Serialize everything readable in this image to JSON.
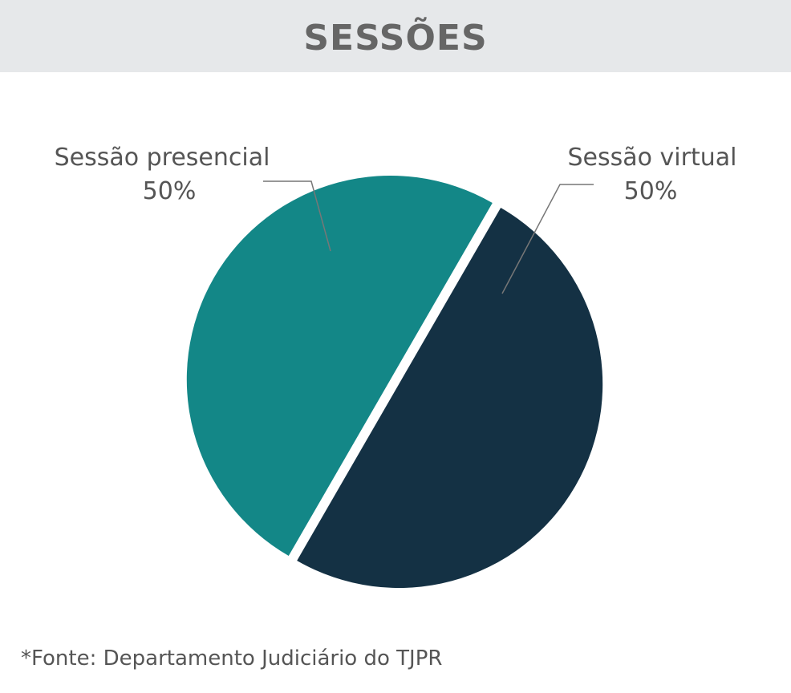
{
  "header": {
    "title": "SESSÕES"
  },
  "chart_data": {
    "type": "pie",
    "title": "SESSÕES",
    "slices": [
      {
        "label": "Sessão presencial",
        "value": 50,
        "value_label": "50%",
        "color": "#138787"
      },
      {
        "label": "Sessão virtual",
        "value": 50,
        "value_label": "50%",
        "color": "#143144"
      }
    ],
    "exploded": true
  },
  "footer": {
    "source": "*Fonte: Departamento Judiciário do TJPR"
  }
}
